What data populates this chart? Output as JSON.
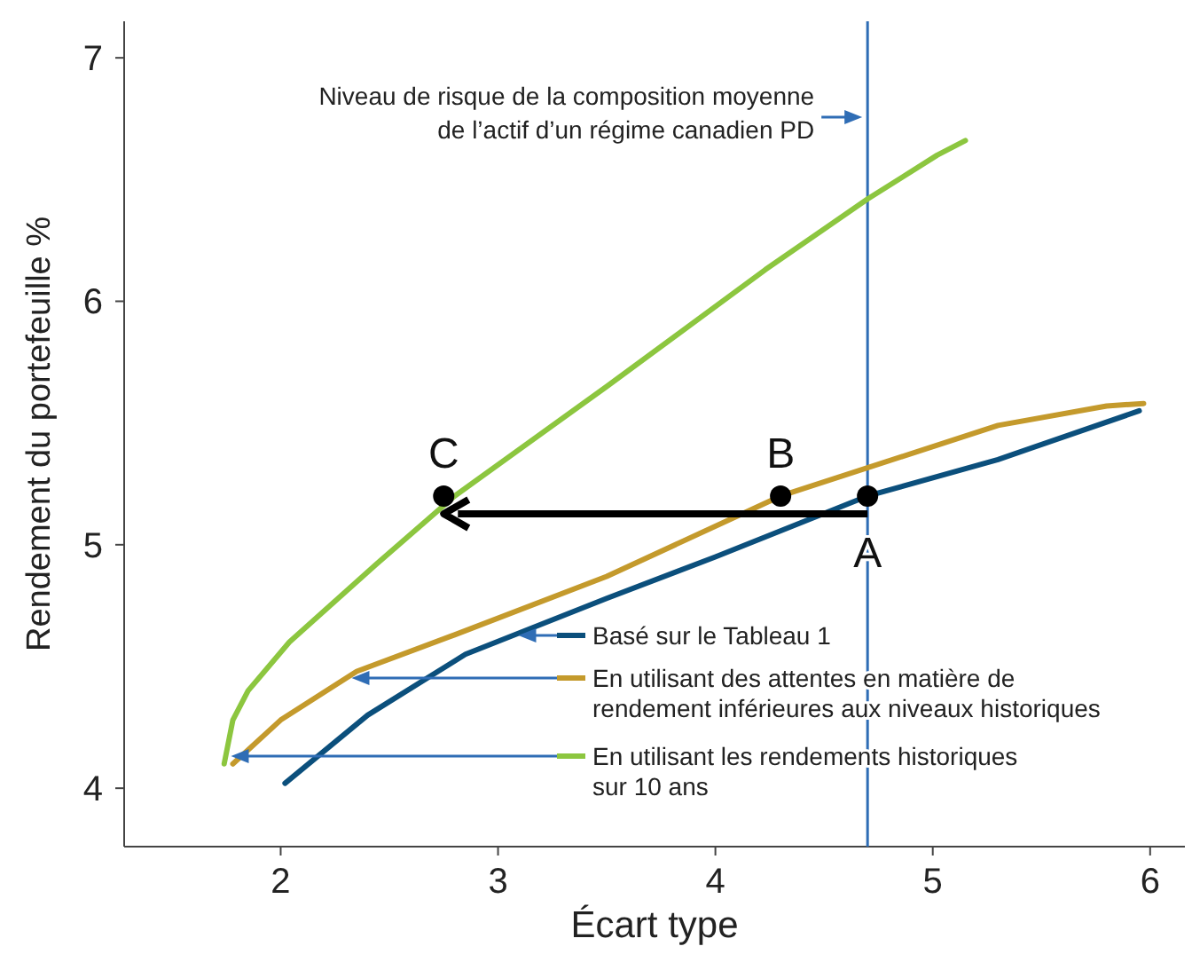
{
  "chart_data": {
    "type": "line",
    "xlabel": "Écart type",
    "ylabel": "Rendement du portefeuille %",
    "xlim": [
      1.28,
      6.16
    ],
    "ylim": [
      3.76,
      7.15
    ],
    "xticks": [
      2,
      3,
      4,
      5,
      6
    ],
    "yticks": [
      4,
      5,
      6,
      7
    ],
    "grid": false,
    "legend": "right",
    "marker": "none",
    "line_style": "solid",
    "series": [
      {
        "name": "Basé sur le Tableau 1",
        "color": "#0b4f7c",
        "x": [
          2.02,
          2.4,
          2.85,
          3.5,
          4.0,
          4.7,
          5.3,
          5.95
        ],
        "values": [
          4.02,
          4.3,
          4.55,
          4.78,
          4.95,
          5.2,
          5.35,
          5.55
        ]
      },
      {
        "name": "En utilisant des attentes en matière de\nrendement inférieures aux niveaux historiques",
        "color": "#c49a2c",
        "x": [
          1.78,
          2.0,
          2.35,
          2.8,
          3.5,
          4.3,
          5.3,
          5.8,
          5.97
        ],
        "values": [
          4.1,
          4.28,
          4.48,
          4.63,
          4.87,
          5.2,
          5.49,
          5.57,
          5.58
        ]
      },
      {
        "name": "En utilisant les rendements historiques\nsur 10 ans",
        "color": "#8cc63f",
        "x": [
          1.74,
          1.78,
          1.85,
          2.04,
          2.44,
          2.8,
          3.5,
          4.23,
          4.7,
          5.02,
          5.15
        ],
        "values": [
          4.1,
          4.28,
          4.4,
          4.6,
          4.92,
          5.2,
          5.65,
          6.13,
          6.42,
          6.6,
          6.66
        ]
      },
      {
        "type": "scatter",
        "color": "#000000",
        "marker": "circle",
        "x": [
          2.75,
          4.3,
          4.7
        ],
        "values": [
          5.2,
          5.2,
          5.2
        ],
        "value_labels": [
          "C",
          "B",
          "A"
        ]
      }
    ],
    "ref_lines": [
      {
        "axis": "x",
        "value": 4.7,
        "label": "Niveau de risque de la composition moyenne\nde l’actif d’un régime canadien PD",
        "color": "#2f6db5"
      }
    ]
  }
}
